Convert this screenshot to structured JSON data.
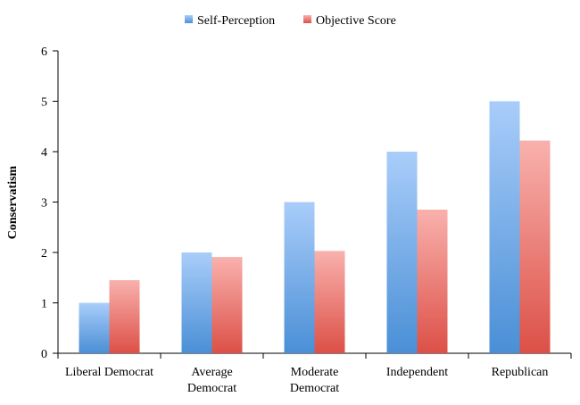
{
  "chart_data": {
    "type": "bar",
    "categories": [
      [
        "Liberal Democrat"
      ],
      [
        "Average",
        "Democrat"
      ],
      [
        "Moderate",
        "Democrat"
      ],
      [
        "Independent"
      ],
      [
        "Republican"
      ]
    ],
    "series": [
      {
        "name": "Self-Perception",
        "values": [
          1,
          2,
          3,
          4,
          5
        ],
        "color_top": "#a9cdfa",
        "color_bottom": "#4a8fd6"
      },
      {
        "name": "Objective Score",
        "values": [
          1.45,
          1.91,
          2.03,
          2.85,
          4.22
        ],
        "color_top": "#f9b1ad",
        "color_bottom": "#dc5047"
      }
    ],
    "ylabel": "Conservatism",
    "ylim": [
      0,
      6
    ],
    "yticks": [
      "0",
      "1",
      "2",
      "3",
      "4",
      "5",
      "6"
    ],
    "grid": false,
    "legend_position": "top-center"
  }
}
